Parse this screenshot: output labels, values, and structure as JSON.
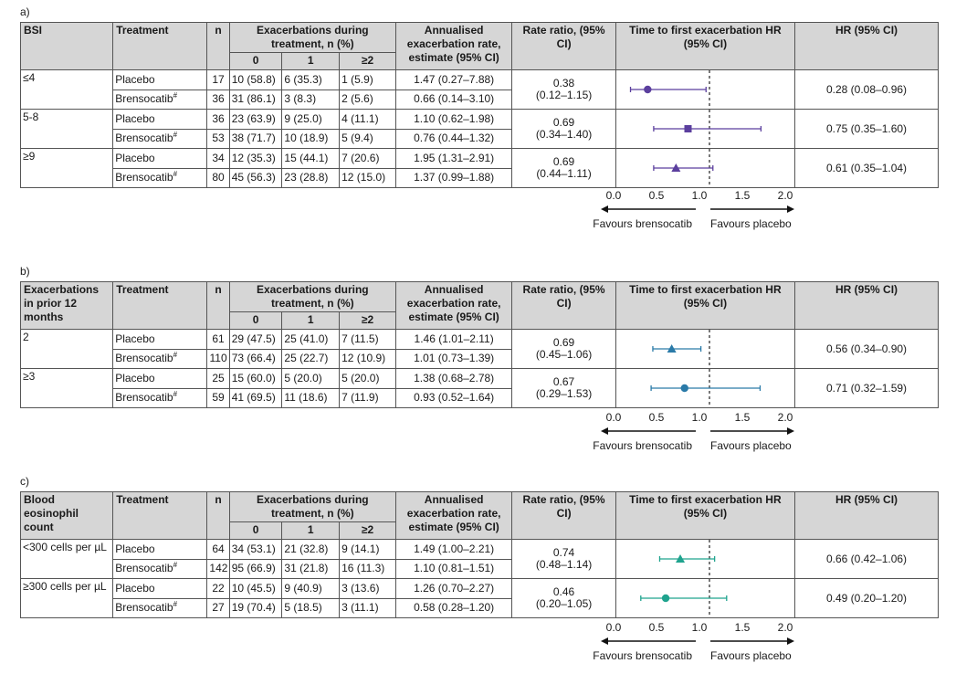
{
  "scale": {
    "ticks": [
      "0.0",
      "0.5",
      "1.0",
      "1.5",
      "2.0"
    ],
    "min": 0,
    "max": 2,
    "null_line": 1,
    "favours_left": "Favours brensocatib",
    "favours_right": "Favours placebo"
  },
  "headers": {
    "treatment": "Treatment",
    "n": "n",
    "exac": "Exacerbations during treatment, n (%)",
    "exac_0": "0",
    "exac_1": "1",
    "exac_2": "≥2",
    "rate": "Annualised exacerbation rate, estimate (95% CI)",
    "rr": "Rate ratio, (95% CI)",
    "ttfe": "Time to first exacerbation HR (95% CI)",
    "hr": "HR (95% CI)"
  },
  "panels": [
    {
      "label": "a)",
      "group_header": "BSI",
      "color": "#5b3f9e",
      "groups": [
        {
          "name": "≤4",
          "marker": "circle",
          "rows": [
            {
              "treatment": "Placebo",
              "sup": "",
              "n": "17",
              "e0": "10 (58.8)",
              "e1": "6 (35.3)",
              "e2": "1 (5.9)",
              "rate": "1.47 (0.27–7.88)"
            },
            {
              "treatment": "Brensocatib",
              "sup": "#",
              "n": "36",
              "e0": "31 (86.1)",
              "e1": "3 (8.3)",
              "e2": "2 (5.6)",
              "rate": "0.66 (0.14–3.10)"
            }
          ],
          "rr": "0.38",
          "rr_ci": "(0.12–1.15)",
          "hr_text": "0.28 (0.08–0.96)",
          "hr": 0.28,
          "lo": 0.08,
          "hi": 0.96
        },
        {
          "name": "5-8",
          "marker": "square",
          "rows": [
            {
              "treatment": "Placebo",
              "sup": "",
              "n": "36",
              "e0": "23 (63.9)",
              "e1": "9 (25.0)",
              "e2": "4 (11.1)",
              "rate": "1.10 (0.62–1.98)"
            },
            {
              "treatment": "Brensocatib",
              "sup": "#",
              "n": "53",
              "e0": "38 (71.7)",
              "e1": "10 (18.9)",
              "e2": "5 (9.4)",
              "rate": "0.76 (0.44–1.32)"
            }
          ],
          "rr": "0.69",
          "rr_ci": "(0.34–1.40)",
          "hr_text": "0.75 (0.35–1.60)",
          "hr": 0.75,
          "lo": 0.35,
          "hi": 1.6
        },
        {
          "name": "≥9",
          "marker": "triangle",
          "rows": [
            {
              "treatment": "Placebo",
              "sup": "",
              "n": "34",
              "e0": "12 (35.3)",
              "e1": "15 (44.1)",
              "e2": "7 (20.6)",
              "rate": "1.95 (1.31–2.91)"
            },
            {
              "treatment": "Brensocatib",
              "sup": "#",
              "n": "80",
              "e0": "45 (56.3)",
              "e1": "23 (28.8)",
              "e2": "12 (15.0)",
              "rate": "1.37 (0.99–1.88)"
            }
          ],
          "rr": "0.69",
          "rr_ci": "(0.44–1.11)",
          "hr_text": "0.61 (0.35–1.04)",
          "hr": 0.61,
          "lo": 0.35,
          "hi": 1.04
        }
      ]
    },
    {
      "label": "b)",
      "group_header": "Exacerbations in prior 12 months",
      "color": "#2a7aa8",
      "groups": [
        {
          "name": "2",
          "marker": "triangle",
          "rows": [
            {
              "treatment": "Placebo",
              "sup": "",
              "n": "61",
              "e0": "29 (47.5)",
              "e1": "25 (41.0)",
              "e2": "7 (11.5)",
              "rate": "1.46 (1.01–2.11)"
            },
            {
              "treatment": "Brensocatib",
              "sup": "#",
              "n": "110",
              "e0": "73 (66.4)",
              "e1": "25 (22.7)",
              "e2": "12 (10.9)",
              "rate": "1.01 (0.73–1.39)"
            }
          ],
          "rr": "0.69",
          "rr_ci": "(0.45–1.06)",
          "hr_text": "0.56 (0.34–0.90)",
          "hr": 0.56,
          "lo": 0.34,
          "hi": 0.9
        },
        {
          "name": "≥3",
          "marker": "circle",
          "rows": [
            {
              "treatment": "Placebo",
              "sup": "",
              "n": "25",
              "e0": "15 (60.0)",
              "e1": "5 (20.0)",
              "e2": "5 (20.0)",
              "rate": "1.38 (0.68–2.78)"
            },
            {
              "treatment": "Brensocatib",
              "sup": "#",
              "n": "59",
              "e0": "41 (69.5)",
              "e1": "11 (18.6)",
              "e2": "7 (11.9)",
              "rate": "0.93 (0.52–1.64)"
            }
          ],
          "rr": "0.67",
          "rr_ci": "(0.29–1.53)",
          "hr_text": "0.71 (0.32–1.59)",
          "hr": 0.71,
          "lo": 0.32,
          "hi": 1.59
        }
      ]
    },
    {
      "label": "c)",
      "group_header": "Blood eosinophil count",
      "color": "#1fa38e",
      "groups": [
        {
          "name": "<300 cells per µL",
          "marker": "triangle",
          "rows": [
            {
              "treatment": "Placebo",
              "sup": "",
              "n": "64",
              "e0": "34 (53.1)",
              "e1": "21 (32.8)",
              "e2": "9 (14.1)",
              "rate": "1.49 (1.00–2.21)"
            },
            {
              "treatment": "Brensocatib",
              "sup": "#",
              "n": "142",
              "e0": "95 (66.9)",
              "e1": "31 (21.8)",
              "e2": "16 (11.3)",
              "rate": "1.10 (0.81–1.51)"
            }
          ],
          "rr": "0.74",
          "rr_ci": "(0.48–1.14)",
          "hr_text": "0.66 (0.42–1.06)",
          "hr": 0.66,
          "lo": 0.42,
          "hi": 1.06
        },
        {
          "name": "≥300 cells per µL",
          "marker": "circle",
          "rows": [
            {
              "treatment": "Placebo",
              "sup": "",
              "n": "22",
              "e0": "10 (45.5)",
              "e1": "9 (40.9)",
              "e2": "3 (13.6)",
              "rate": "1.26 (0.70–2.27)"
            },
            {
              "treatment": "Brensocatib",
              "sup": "#",
              "n": "27",
              "e0": "19 (70.4)",
              "e1": "5 (18.5)",
              "e2": "3 (11.1)",
              "rate": "0.58 (0.28–1.20)"
            }
          ],
          "rr": "0.46",
          "rr_ci": "(0.20–1.05)",
          "hr_text": "0.49 (0.20–1.20)",
          "hr": 0.49,
          "lo": 0.2,
          "hi": 1.2
        }
      ]
    }
  ]
}
